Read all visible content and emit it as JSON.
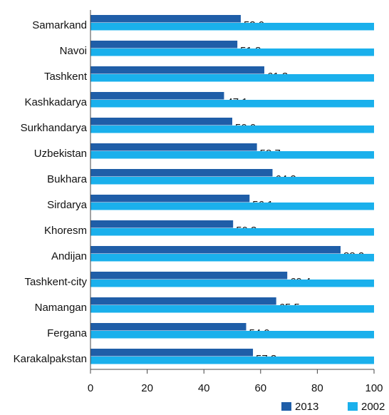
{
  "chart_data": {
    "type": "hbar",
    "categories": [
      "Samarkand",
      "Navoi",
      "Tashkent",
      "Kashkadarya",
      "Surkhandarya",
      "Uzbekistan",
      "Bukhara",
      "Sirdarya",
      "Khoresm",
      "Andijan",
      "Tashkent-city",
      "Namangan",
      "Fergana",
      "Karakalpakstan"
    ],
    "series": [
      {
        "name": "2013",
        "color": "#1f5ea8",
        "values": [
          53.0,
          51.8,
          61.3,
          47.1,
          50.0,
          58.7,
          64.2,
          56.1,
          50.3,
          88.2,
          69.4,
          65.5,
          54.9,
          57.3
        ],
        "value_labels": [
          "53.0",
          "51.8",
          "61.3",
          "47.1",
          "50.0",
          "58.7",
          "64.2",
          "56.1",
          "50.3",
          "88.2",
          "69.4",
          "65.5",
          "54.9",
          "57.3"
        ]
      },
      {
        "name": "2002",
        "color": "#1ab0ec",
        "values": [
          100,
          100,
          100,
          100,
          100,
          100,
          100,
          100,
          100,
          100,
          100,
          100,
          100,
          100
        ]
      }
    ],
    "xlim": [
      0,
      100
    ],
    "xticks": [
      0,
      20,
      40,
      60,
      80,
      100
    ],
    "legend": "bottom"
  }
}
